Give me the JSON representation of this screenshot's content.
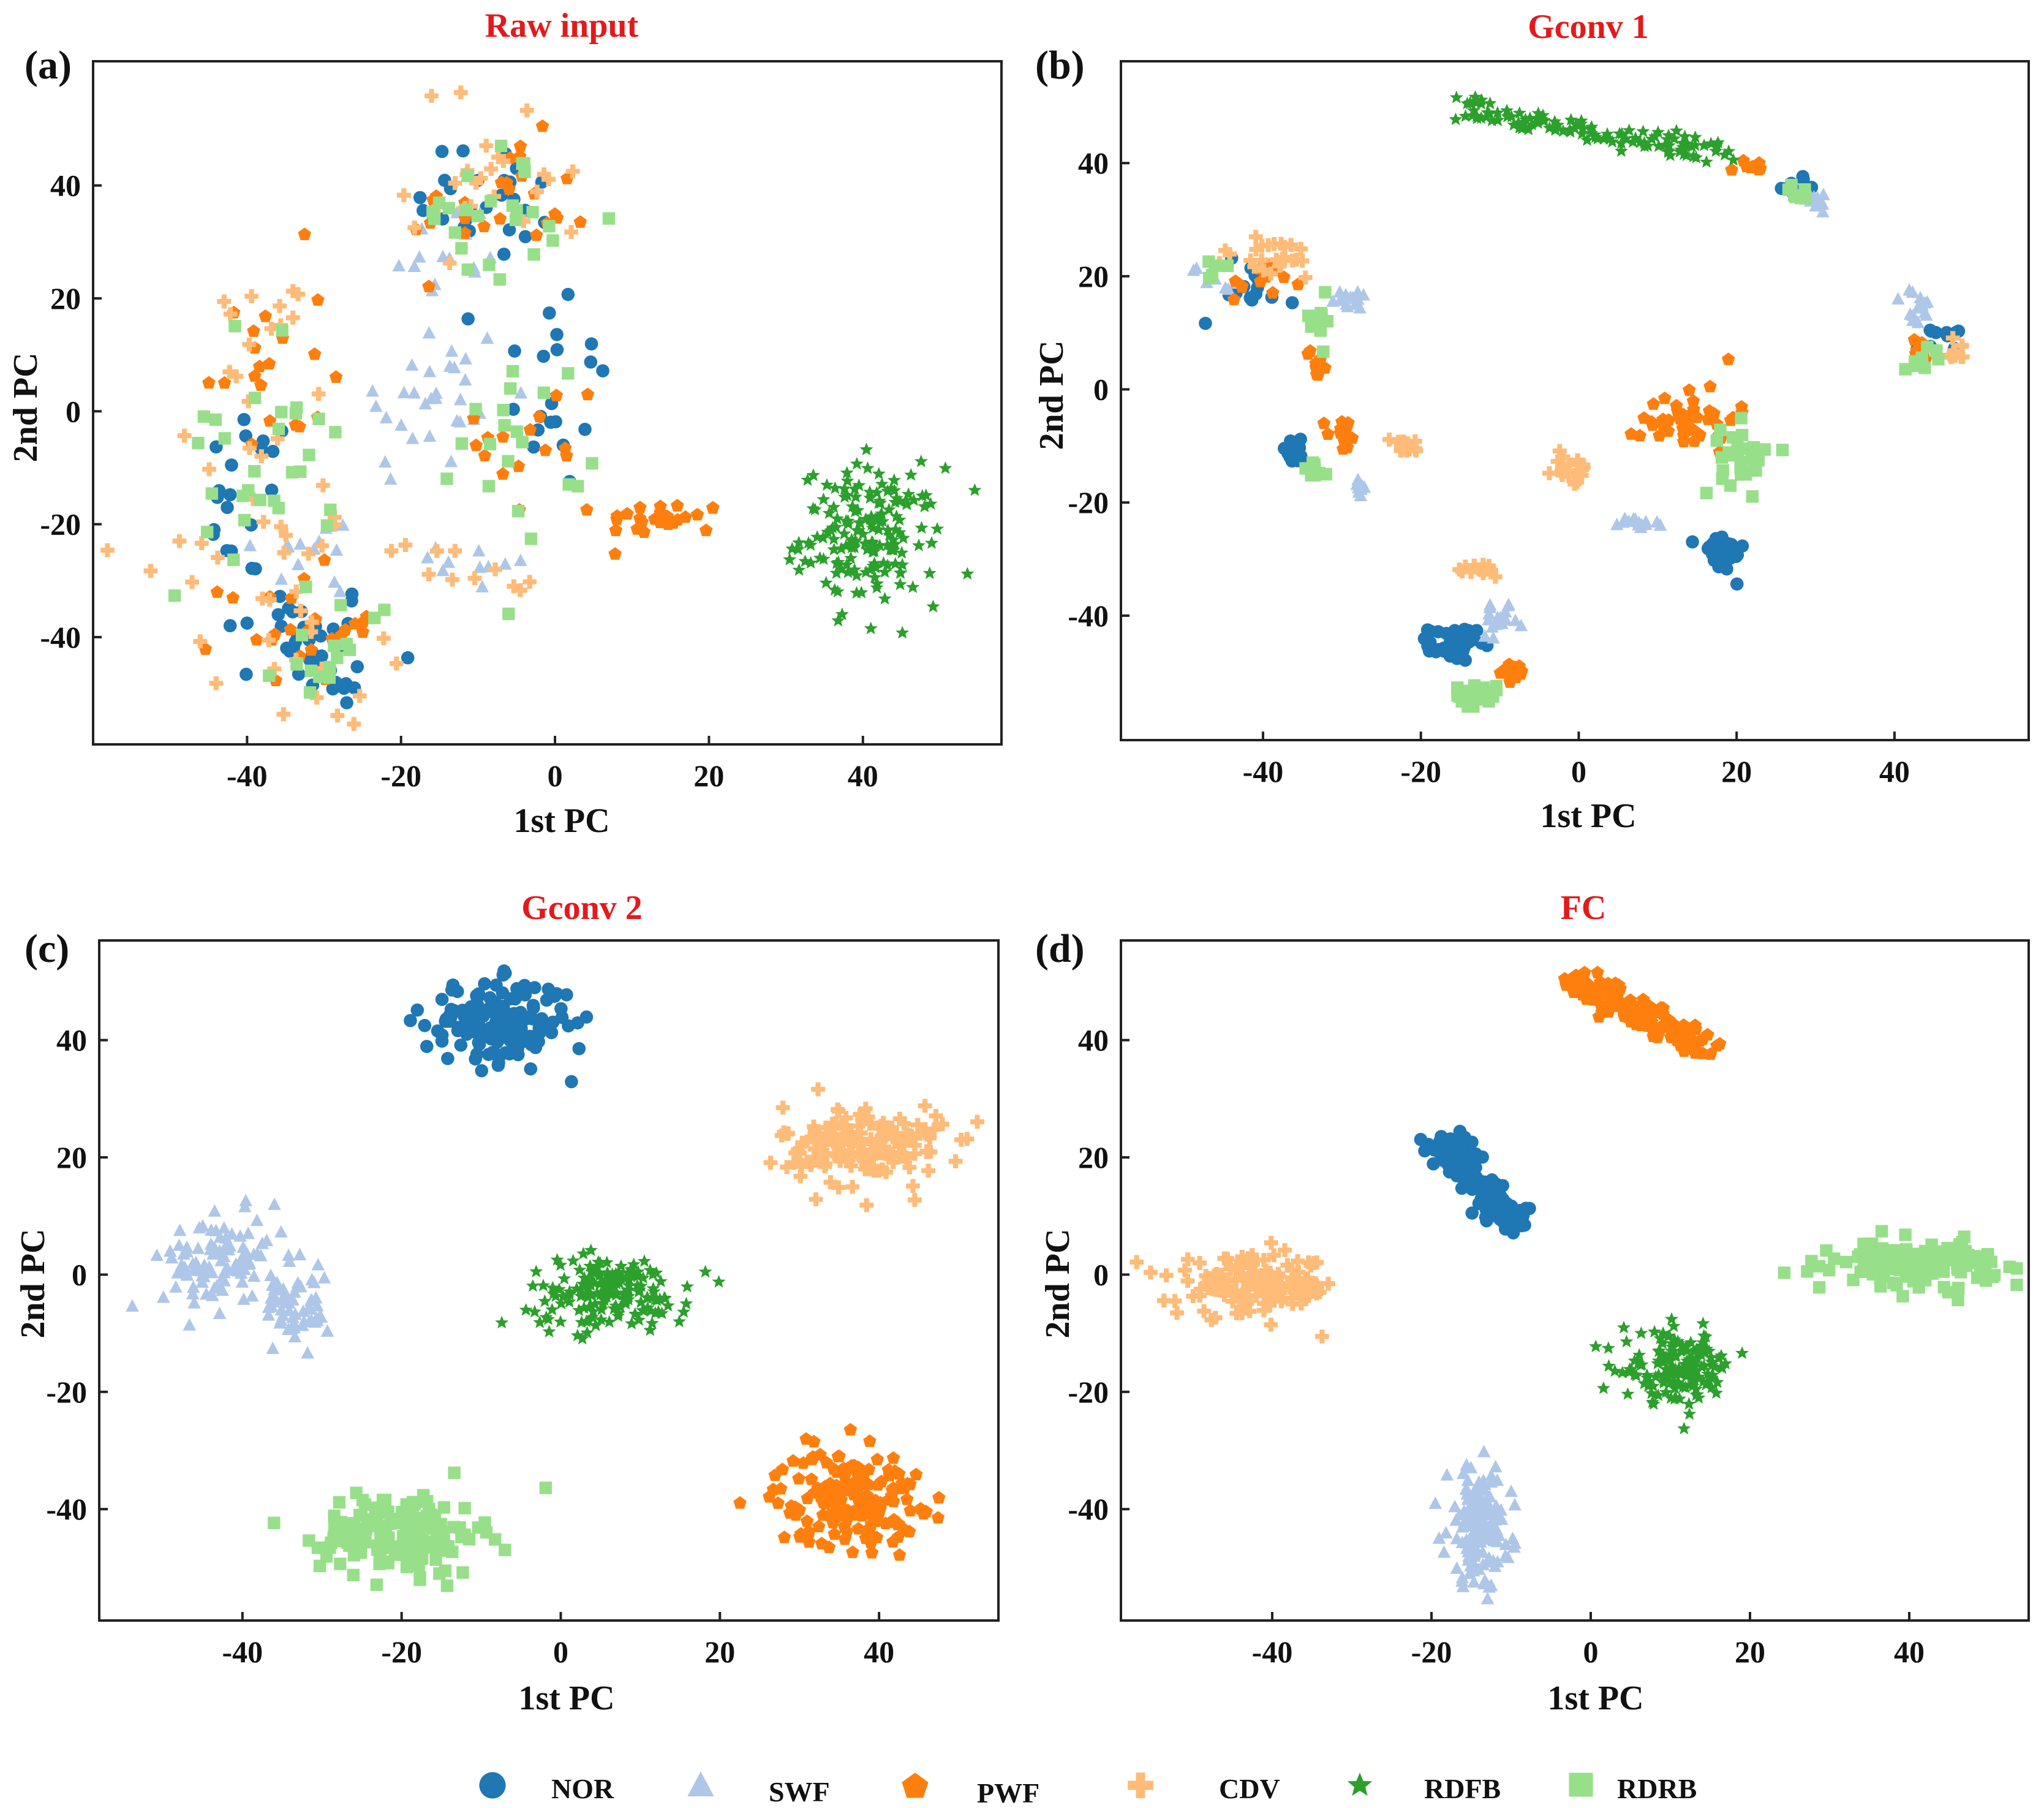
{
  "chart_data": [
    {
      "type": "scatter",
      "panel_label": "(a)",
      "title": "Raw input",
      "xlabel": "1st PC",
      "ylabel": "2nd PC",
      "xlim": [
        -60,
        58
      ],
      "ylim": [
        -59,
        62
      ],
      "xticks": [
        "-40",
        "-20",
        "0",
        "20",
        "40"
      ],
      "yticks": [
        "40",
        "20",
        "0",
        "-20",
        "-40"
      ],
      "series": [
        {
          "name": "NOR",
          "clusters": [
            {
              "x": -33,
              "y": -40,
              "sx": 5,
              "sy": 5,
              "n": 30
            },
            {
              "x": -40,
              "y": -15,
              "sx": 3,
              "sy": 8,
              "n": 20
            },
            {
              "x": -8,
              "y": 38,
              "sx": 5,
              "sy": 6,
              "n": 25
            },
            {
              "x": -1,
              "y": 5,
              "sx": 4,
              "sy": 10,
              "n": 20
            },
            {
              "x": -28,
              "y": -48,
              "sx": 3,
              "sy": 3,
              "n": 10
            }
          ]
        },
        {
          "name": "SWF",
          "clusters": [
            {
              "x": -16,
              "y": 2,
              "sx": 5,
              "sy": 8,
              "n": 30
            },
            {
              "x": -31,
              "y": -25,
              "sx": 4,
              "sy": 4,
              "n": 15
            },
            {
              "x": -14,
              "y": 28,
              "sx": 4,
              "sy": 5,
              "n": 15
            },
            {
              "x": -10,
              "y": -27,
              "sx": 4,
              "sy": 3,
              "n": 10
            }
          ]
        },
        {
          "name": "PWF",
          "clusters": [
            {
              "x": 14,
              "y": -19,
              "sx": 4,
              "sy": 1.5,
              "n": 25
            },
            {
              "x": -7,
              "y": 36,
              "sx": 6,
              "sy": 6,
              "n": 25
            },
            {
              "x": -33,
              "y": -38,
              "sx": 5,
              "sy": 5,
              "n": 25
            },
            {
              "x": -38,
              "y": 8,
              "sx": 4,
              "sy": 10,
              "n": 20
            },
            {
              "x": -2,
              "y": -5,
              "sx": 4,
              "sy": 8,
              "n": 15
            }
          ]
        },
        {
          "name": "CDV",
          "clusters": [
            {
              "x": -38,
              "y": -25,
              "sx": 8,
              "sy": 10,
              "n": 30
            },
            {
              "x": -7,
              "y": 42,
              "sx": 6,
              "sy": 8,
              "n": 25
            },
            {
              "x": -30,
              "y": -48,
              "sx": 4,
              "sy": 4,
              "n": 10
            },
            {
              "x": -12,
              "y": -28,
              "sx": 5,
              "sy": 3,
              "n": 10
            },
            {
              "x": -40,
              "y": 10,
              "sx": 5,
              "sy": 8,
              "n": 15
            }
          ]
        },
        {
          "name": "RDFB",
          "clusters": [
            {
              "x": 41,
              "y": -22,
              "sx": 4.5,
              "sy": 6,
              "n": 170
            }
          ]
        },
        {
          "name": "RDRB",
          "clusters": [
            {
              "x": -39,
              "y": -10,
              "sx": 5,
              "sy": 12,
              "n": 30
            },
            {
              "x": -8,
              "y": 35,
              "sx": 5,
              "sy": 6,
              "n": 25
            },
            {
              "x": -28,
              "y": -42,
              "sx": 4,
              "sy": 5,
              "n": 15
            },
            {
              "x": -4,
              "y": -5,
              "sx": 4,
              "sy": 8,
              "n": 20
            }
          ]
        }
      ]
    },
    {
      "type": "scatter",
      "panel_label": "(b)",
      "title": "Gconv 1",
      "xlabel": "1st PC",
      "ylabel": "2nd PC",
      "xlim": [
        -58,
        57
      ],
      "ylim": [
        -62,
        58
      ],
      "xticks": [
        "-40",
        "-20",
        "0",
        "20",
        "40"
      ],
      "yticks": [
        "40",
        "20",
        "0",
        "-20",
        "-40"
      ],
      "series": [
        {
          "name": "NOR",
          "clusters": [
            {
              "x": -16,
              "y": -45,
              "sx": 1.5,
              "sy": 1.5,
              "n": 45
            },
            {
              "x": 18,
              "y": -29,
              "sx": 1.5,
              "sy": 1.8,
              "n": 40
            },
            {
              "x": -36,
              "y": -11,
              "sx": 1,
              "sy": 1,
              "n": 15
            },
            {
              "x": -42,
              "y": 18,
              "sx": 3,
              "sy": 3,
              "n": 15
            },
            {
              "x": 46,
              "y": 10,
              "sx": 1.5,
              "sy": 1.5,
              "n": 12
            },
            {
              "x": 28,
              "y": 36,
              "sx": 1,
              "sy": 1,
              "n": 8
            }
          ]
        },
        {
          "name": "SWF",
          "clusters": [
            {
              "x": -10,
              "y": -41,
              "sx": 1.2,
              "sy": 1.2,
              "n": 20
            },
            {
              "x": 7,
              "y": -24,
              "sx": 1.5,
              "sy": 0.8,
              "n": 15
            },
            {
              "x": -29,
              "y": 16,
              "sx": 1,
              "sy": 1,
              "n": 15
            },
            {
              "x": 43,
              "y": 14,
              "sx": 1,
              "sy": 2,
              "n": 15
            },
            {
              "x": -28,
              "y": -17,
              "sx": 0.7,
              "sy": 1,
              "n": 10
            },
            {
              "x": 30,
              "y": 34,
              "sx": 1,
              "sy": 1,
              "n": 10
            },
            {
              "x": -46,
              "y": 19,
              "sx": 1.5,
              "sy": 2,
              "n": 8
            }
          ]
        },
        {
          "name": "PWF",
          "clusters": [
            {
              "x": 14,
              "y": -5,
              "sx": 3,
              "sy": 3,
              "n": 45
            },
            {
              "x": -8,
              "y": -50,
              "sx": 1,
              "sy": 0.8,
              "n": 15
            },
            {
              "x": -30,
              "y": -8,
              "sx": 1,
              "sy": 1.5,
              "n": 15
            },
            {
              "x": -33,
              "y": 5,
              "sx": 0.8,
              "sy": 2,
              "n": 12
            },
            {
              "x": -40,
              "y": 19,
              "sx": 2,
              "sy": 2,
              "n": 12
            },
            {
              "x": 43,
              "y": 7,
              "sx": 1,
              "sy": 1,
              "n": 8
            },
            {
              "x": 22,
              "y": 39,
              "sx": 1,
              "sy": 1,
              "n": 8
            }
          ]
        },
        {
          "name": "CDV",
          "clusters": [
            {
              "x": -12,
              "y": -32,
              "sx": 1,
              "sy": 0.6,
              "n": 15
            },
            {
              "x": -1,
              "y": -14,
              "sx": 1.2,
              "sy": 1.5,
              "n": 20
            },
            {
              "x": -22,
              "y": -10,
              "sx": 1,
              "sy": 1,
              "n": 15
            },
            {
              "x": -39,
              "y": 23,
              "sx": 4,
              "sy": 2,
              "n": 25
            },
            {
              "x": 48,
              "y": 7,
              "sx": 1,
              "sy": 1,
              "n": 10
            }
          ]
        },
        {
          "name": "RDFB",
          "clusters": [
            {
              "x": 2,
              "y": 46,
              "line": true,
              "x0": -16,
              "y0": 50,
              "x1": 20,
              "y1": 41,
              "n": 120
            }
          ]
        },
        {
          "name": "RDRB",
          "clusters": [
            {
              "x": -13,
              "y": -54,
              "sx": 1.3,
              "sy": 1,
              "n": 30
            },
            {
              "x": 21,
              "y": -12,
              "sx": 1.5,
              "sy": 3,
              "n": 35
            },
            {
              "x": -33,
              "y": -14,
              "sx": 1,
              "sy": 1,
              "n": 10
            },
            {
              "x": -33,
              "y": 12,
              "sx": 0.8,
              "sy": 2,
              "n": 10
            },
            {
              "x": -46,
              "y": 22,
              "sx": 1,
              "sy": 1,
              "n": 5
            },
            {
              "x": 44,
              "y": 6,
              "sx": 1.5,
              "sy": 1,
              "n": 8
            },
            {
              "x": 28,
              "y": 34,
              "sx": 1,
              "sy": 1,
              "n": 8
            }
          ]
        }
      ]
    },
    {
      "type": "scatter",
      "panel_label": "(c)",
      "title": "Gconv 2",
      "xlabel": "1st PC",
      "ylabel": "2nd PC",
      "xlim": [
        -58,
        55
      ],
      "ylim": [
        -59,
        57
      ],
      "xticks": [
        "-40",
        "-20",
        "0",
        "20",
        "40"
      ],
      "yticks": [
        "40",
        "20",
        "0",
        "-20",
        "-40"
      ],
      "series": [
        {
          "name": "NOR",
          "clusters": [
            {
              "x": -8,
              "y": 43,
              "sx": 4.5,
              "sy": 3.5,
              "n": 170
            }
          ]
        },
        {
          "name": "SWF",
          "clusters": [
            {
              "x": -42,
              "y": 2,
              "sx": 4,
              "sy": 4,
              "n": 110
            },
            {
              "x": -33,
              "y": -6,
              "sx": 2,
              "sy": 3,
              "n": 50
            }
          ]
        },
        {
          "name": "PWF",
          "clusters": [
            {
              "x": 36,
              "y": -38,
              "sx": 4.5,
              "sy": 4,
              "n": 170
            }
          ]
        },
        {
          "name": "CDV",
          "clusters": [
            {
              "x": 38,
              "y": 22,
              "sx": 5,
              "sy": 3.5,
              "n": 170
            }
          ]
        },
        {
          "name": "RDFB",
          "clusters": [
            {
              "x": 6,
              "y": -3,
              "sx": 5,
              "sy": 3,
              "n": 170
            }
          ]
        },
        {
          "name": "RDRB",
          "clusters": [
            {
              "x": -20,
              "y": -44,
              "sx": 5,
              "sy": 3.5,
              "n": 170
            }
          ]
        }
      ]
    },
    {
      "type": "scatter",
      "panel_label": "(d)",
      "title": "FC",
      "xlabel": "1st PC",
      "ylabel": "2nd PC",
      "xlim": [
        -59,
        55
      ],
      "ylim": [
        -59,
        57
      ],
      "xticks": [
        "-40",
        "-20",
        "0",
        "20",
        "40"
      ],
      "yticks": [
        "40",
        "20",
        "0",
        "-20",
        "-40"
      ],
      "series": [
        {
          "name": "NOR",
          "clusters": [
            {
              "x": -15,
              "y": 16,
              "line": true,
              "x0": -19,
              "y0": 23,
              "x1": -10,
              "y1": 9,
              "n": 160
            }
          ]
        },
        {
          "name": "SWF",
          "clusters": [
            {
              "x": -14,
              "y": -43,
              "sx": 2,
              "sy": 5,
              "n": 160
            }
          ]
        },
        {
          "name": "PWF",
          "clusters": [
            {
              "x": 5,
              "y": 45,
              "line": true,
              "x0": -2,
              "y0": 50,
              "x1": 14,
              "y1": 39,
              "n": 160
            }
          ]
        },
        {
          "name": "CDV",
          "clusters": [
            {
              "x": -42,
              "y": -2,
              "sx": 5,
              "sy": 2.5,
              "n": 160
            }
          ]
        },
        {
          "name": "RDFB",
          "clusters": [
            {
              "x": 11,
              "y": -16,
              "sx": 3.5,
              "sy": 3,
              "n": 160
            }
          ]
        },
        {
          "name": "RDRB",
          "clusters": [
            {
              "x": 41,
              "y": 2,
              "sx": 5,
              "sy": 1.8,
              "n": 160
            }
          ]
        }
      ]
    }
  ],
  "legend": [
    {
      "name": "NOR",
      "marker": "circle",
      "color": "#1f77b4"
    },
    {
      "name": "SWF",
      "marker": "triangle",
      "color": "#aec7e8"
    },
    {
      "name": "PWF",
      "marker": "pentagon",
      "color": "#ff7f0e"
    },
    {
      "name": "CDV",
      "marker": "plus",
      "color": "#ffbb78"
    },
    {
      "name": "RDFB",
      "marker": "star",
      "color": "#2ca02c"
    },
    {
      "name": "RDRB",
      "marker": "square",
      "color": "#98df8a"
    }
  ]
}
